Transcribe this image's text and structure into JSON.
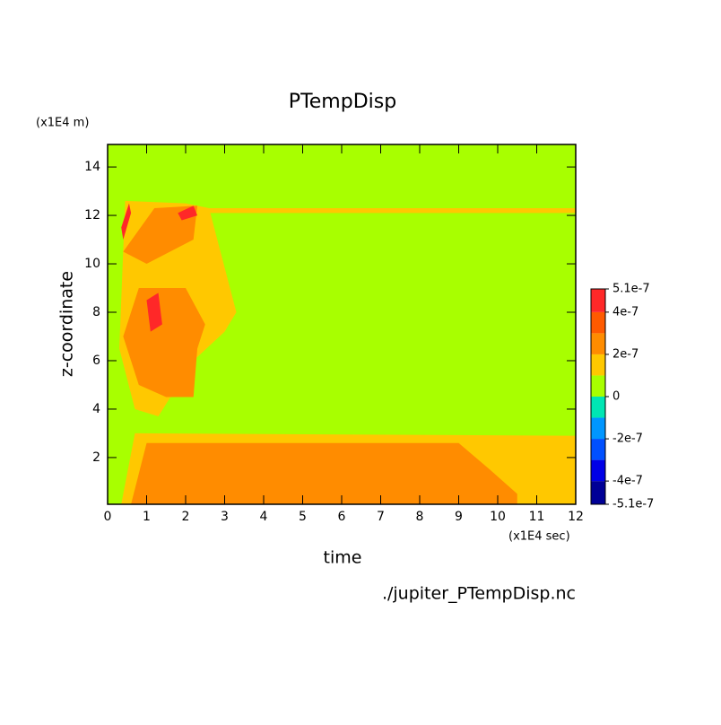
{
  "chart_data": {
    "type": "contour",
    "title": "PTempDisp",
    "x_label": "time",
    "y_label": "z-coordinate",
    "x_unit": "(x1E4 sec)",
    "y_unit": "(x1E4 m)",
    "source": "./jupiter_PTempDisp.nc",
    "xlim": [
      0,
      12
    ],
    "ylim": [
      0.07,
      14.93
    ],
    "xticks": [
      0,
      1,
      2,
      3,
      4,
      5,
      6,
      7,
      8,
      9,
      10,
      11,
      12
    ],
    "yticks": [
      2,
      4,
      6,
      8,
      10,
      12,
      14
    ],
    "background_value": 5e-08,
    "levels": [
      -5.1e-07,
      -4e-07,
      -3e-07,
      -2e-07,
      -1e-07,
      0,
      1e-07,
      2e-07,
      3e-07,
      4e-07,
      5.1e-07
    ],
    "colors": [
      "#000096",
      "#0000e6",
      "#0050ff",
      "#0096ff",
      "#00e6b4",
      "#a8ff00",
      "#ffc800",
      "#ff8c00",
      "#ff5a00",
      "#ff2828"
    ],
    "colorbar_ticks": [
      {
        "value": 5.1e-07,
        "label": "5.1e-7"
      },
      {
        "value": 4e-07,
        "label": "4e-7"
      },
      {
        "value": 2e-07,
        "label": "2e-7"
      },
      0,
      {
        "value": -2e-07,
        "label": "-2e-7"
      },
      {
        "value": -4e-07,
        "label": "-4e-7"
      },
      {
        "value": -5.1e-07,
        "label": "-5.1e-7"
      }
    ],
    "regions": [
      {
        "value": 1.5e-07,
        "x": [
          0.35,
          0.7,
          12,
          12,
          0.35
        ],
        "y": [
          0.07,
          3.0,
          2.9,
          0.07,
          0.07
        ]
      },
      {
        "value": 1.5e-07,
        "x": [
          0.3,
          0.45,
          2.0,
          2.6,
          3.3,
          3.0,
          2.2,
          1.3,
          0.7,
          0.3
        ],
        "y": [
          6.5,
          12.6,
          12.5,
          12.3,
          8.0,
          7.2,
          6.0,
          3.7,
          4.0,
          6.5
        ]
      },
      {
        "value": 1.5e-07,
        "x": [
          2.6,
          12,
          12,
          2.6
        ],
        "y": [
          12.1,
          12.1,
          12.3,
          12.3
        ]
      },
      {
        "value": 2.5e-07,
        "x": [
          0.6,
          1.0,
          9.0,
          9.8,
          10.5,
          10.5,
          0.6
        ],
        "y": [
          0.07,
          2.6,
          2.6,
          1.5,
          0.5,
          0.07,
          0.07
        ]
      },
      {
        "value": 2.5e-07,
        "x": [
          0.4,
          0.8,
          2.0,
          2.5,
          2.3,
          2.2,
          1.5,
          0.8,
          0.4
        ],
        "y": [
          7.0,
          9.0,
          9.0,
          7.5,
          6.5,
          4.5,
          4.5,
          5.0,
          7.0
        ]
      },
      {
        "value": 2.5e-07,
        "x": [
          0.4,
          1.2,
          2.3,
          2.2,
          1.0,
          0.4
        ],
        "y": [
          10.5,
          12.3,
          12.4,
          11.0,
          10.0,
          10.5
        ]
      },
      {
        "value": 4.5e-07,
        "x": [
          1.0,
          1.3,
          1.4,
          1.1
        ],
        "y": [
          8.5,
          8.8,
          7.5,
          7.2
        ]
      },
      {
        "value": 4.5e-07,
        "x": [
          0.35,
          0.55,
          0.6,
          0.4
        ],
        "y": [
          11.5,
          12.5,
          12.1,
          11.0
        ]
      },
      {
        "value": 4.5e-07,
        "x": [
          1.8,
          2.2,
          2.3,
          1.9
        ],
        "y": [
          12.1,
          12.4,
          12.0,
          11.8
        ]
      }
    ]
  }
}
